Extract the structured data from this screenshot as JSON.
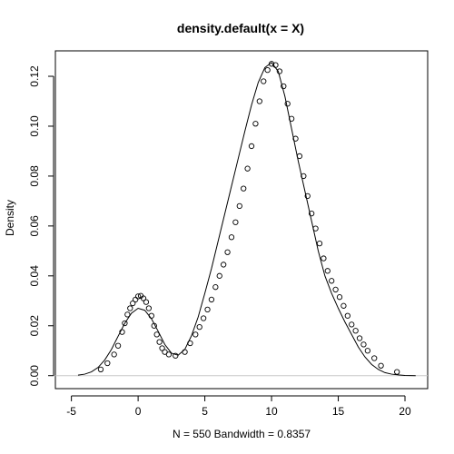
{
  "chart_data": {
    "type": "line",
    "title": "density.default(x = X)",
    "xlabel": "N = 550   Bandwidth = 0.8357",
    "ylabel": "Density",
    "xlim": [
      -6.2,
      21.7
    ],
    "ylim": [
      -0.0052,
      0.1302
    ],
    "xticks": [
      -5,
      0,
      5,
      10,
      15,
      20
    ],
    "xtick_labels": [
      "-5",
      "0",
      "5",
      "10",
      "15",
      "20"
    ],
    "yticks": [
      0.0,
      0.02,
      0.04,
      0.06,
      0.08,
      0.1,
      0.12
    ],
    "ytick_labels": [
      "0.00",
      "0.02",
      "0.04",
      "0.06",
      "0.08",
      "0.10",
      "0.12"
    ],
    "zero_line": true,
    "grid": false,
    "series": [
      {
        "style": "line",
        "x": [
          -4.5,
          -4.0,
          -3.5,
          -3.0,
          -2.5,
          -2.0,
          -1.5,
          -1.0,
          -0.5,
          0.0,
          0.5,
          1.0,
          1.5,
          2.0,
          2.5,
          3.0,
          3.5,
          4.0,
          4.5,
          5.0,
          5.5,
          6.0,
          6.5,
          7.0,
          7.5,
          8.0,
          8.5,
          9.0,
          9.5,
          10.0,
          10.5,
          11.0,
          11.5,
          12.0,
          12.5,
          13.0,
          13.5,
          14.0,
          14.5,
          15.0,
          15.5,
          16.0,
          16.5,
          17.0,
          17.5,
          18.0,
          18.5,
          19.0,
          19.5,
          20.0,
          20.8
        ],
        "y": [
          0.0002,
          0.0006,
          0.0015,
          0.0033,
          0.0063,
          0.0105,
          0.0158,
          0.021,
          0.025,
          0.027,
          0.0262,
          0.0228,
          0.0178,
          0.0125,
          0.009,
          0.0082,
          0.0105,
          0.016,
          0.0235,
          0.033,
          0.043,
          0.054,
          0.065,
          0.076,
          0.087,
          0.098,
          0.1085,
          0.1175,
          0.1235,
          0.1255,
          0.122,
          0.112,
          0.099,
          0.086,
          0.074,
          0.062,
          0.05,
          0.04,
          0.033,
          0.027,
          0.0215,
          0.0165,
          0.0115,
          0.0075,
          0.0045,
          0.0025,
          0.0012,
          0.0006,
          0.0003,
          0.0001,
          0.0
        ]
      },
      {
        "style": "points",
        "x": [
          -2.8,
          -2.3,
          -1.8,
          -1.5,
          -1.2,
          -1.0,
          -0.8,
          -0.6,
          -0.4,
          -0.2,
          0.0,
          0.2,
          0.4,
          0.6,
          0.8,
          1.0,
          1.2,
          1.4,
          1.6,
          1.8,
          2.0,
          2.3,
          2.8,
          3.5,
          3.9,
          4.3,
          4.6,
          4.9,
          5.2,
          5.5,
          5.8,
          6.1,
          6.4,
          6.7,
          7.0,
          7.3,
          7.6,
          7.9,
          8.2,
          8.5,
          8.8,
          9.1,
          9.4,
          9.7,
          10.0,
          10.3,
          10.6,
          10.9,
          11.2,
          11.5,
          11.8,
          12.1,
          12.4,
          12.7,
          13.0,
          13.3,
          13.6,
          13.9,
          14.2,
          14.5,
          14.8,
          15.1,
          15.4,
          15.7,
          16.0,
          16.3,
          16.6,
          16.9,
          17.2,
          17.7,
          18.2,
          19.4
        ],
        "y": [
          0.0025,
          0.005,
          0.0085,
          0.012,
          0.0175,
          0.021,
          0.0245,
          0.027,
          0.029,
          0.0305,
          0.0318,
          0.032,
          0.031,
          0.0295,
          0.027,
          0.024,
          0.02,
          0.0165,
          0.0135,
          0.011,
          0.0095,
          0.0085,
          0.008,
          0.0095,
          0.013,
          0.0165,
          0.0195,
          0.023,
          0.0265,
          0.0305,
          0.0355,
          0.04,
          0.0445,
          0.0495,
          0.0555,
          0.0615,
          0.068,
          0.075,
          0.083,
          0.092,
          0.101,
          0.11,
          0.118,
          0.1225,
          0.125,
          0.1245,
          0.122,
          0.116,
          0.109,
          0.103,
          0.095,
          0.088,
          0.08,
          0.072,
          0.065,
          0.059,
          0.053,
          0.047,
          0.042,
          0.038,
          0.0345,
          0.0315,
          0.028,
          0.024,
          0.0205,
          0.018,
          0.015,
          0.0125,
          0.01,
          0.007,
          0.004,
          0.0015
        ]
      }
    ]
  }
}
